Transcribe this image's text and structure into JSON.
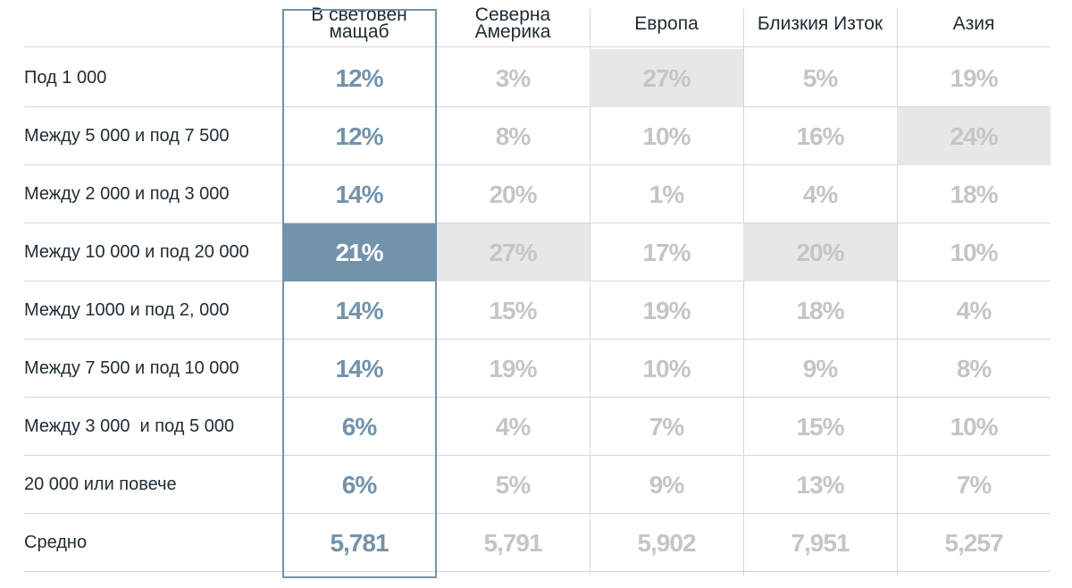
{
  "table": {
    "columns": [
      {
        "lines": [
          "В световен",
          "мащаб"
        ]
      },
      {
        "lines": [
          "Северна",
          "Америка"
        ]
      },
      {
        "lines": [
          "Европа"
        ]
      },
      {
        "lines": [
          "Близкия Изток"
        ]
      },
      {
        "lines": [
          "Азия"
        ]
      }
    ],
    "rows": [
      {
        "label": "Под 1 000",
        "values": [
          "12%",
          "3%",
          "27%",
          "5%",
          "19%"
        ],
        "shaded": [
          false,
          false,
          true,
          false,
          false
        ]
      },
      {
        "label": "Между 5 000 и под 7 500",
        "values": [
          "12%",
          "8%",
          "10%",
          "16%",
          "24%"
        ],
        "shaded": [
          false,
          false,
          false,
          false,
          true
        ]
      },
      {
        "label": "Между 2 000 и под 3 000",
        "values": [
          "14%",
          "20%",
          "1%",
          "4%",
          "18%"
        ],
        "shaded": [
          false,
          false,
          false,
          false,
          false
        ]
      },
      {
        "label": "Между 10 000 и под 20 000",
        "values": [
          "21%",
          "27%",
          "17%",
          "20%",
          "10%"
        ],
        "shaded": [
          true,
          true,
          false,
          true,
          false
        ]
      },
      {
        "label": "Между 1000 и под 2, 000",
        "values": [
          "14%",
          "15%",
          "19%",
          "18%",
          "4%"
        ],
        "shaded": [
          false,
          false,
          false,
          false,
          false
        ]
      },
      {
        "label": "Между 7 500 и под 10 000",
        "values": [
          "14%",
          "19%",
          "10%",
          "9%",
          "8%"
        ],
        "shaded": [
          false,
          false,
          false,
          false,
          false
        ]
      },
      {
        "label": "Между 3 000  и под 5 000",
        "values": [
          "6%",
          "4%",
          "7%",
          "15%",
          "10%"
        ],
        "shaded": [
          false,
          false,
          false,
          false,
          false
        ]
      },
      {
        "label": "20 000 или повече",
        "values": [
          "6%",
          "5%",
          "9%",
          "13%",
          "7%"
        ],
        "shaded": [
          false,
          false,
          false,
          false,
          false
        ]
      },
      {
        "label": "Средно",
        "values": [
          "5,781",
          "5,791",
          "5,902",
          "7,951",
          "5,257"
        ],
        "shaded": [
          false,
          false,
          false,
          false,
          false
        ]
      }
    ]
  },
  "colors": {
    "world_accent": "#7393ab",
    "muted_value": "#c2c6c9",
    "shade": "#e6e7e8",
    "text": "#1f2b33"
  }
}
